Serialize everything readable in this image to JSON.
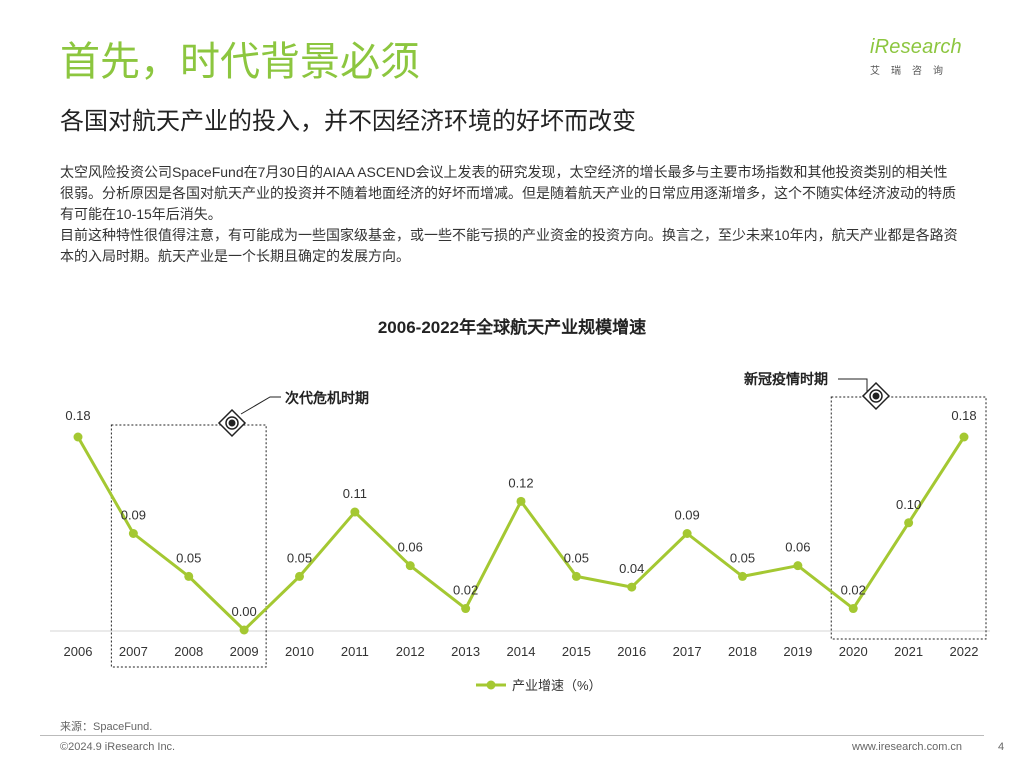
{
  "header": {
    "title": "首先，时代背景必须",
    "subtitle": "各国对航天产业的投入，并不因经济环境的好坏而改变"
  },
  "logo": {
    "text": "iResearch",
    "sub": "艾瑞咨询"
  },
  "body": {
    "paragraphs": [
      "太空风险投资公司SpaceFund在7月30日的AIAA ASCEND会议上发表的研究发现，太空经济的增长最多与主要市场指数和其他投资类别的相关性很弱。分析原因是各国对航天产业的投资并不随着地面经济的好坏而增减。但是随着航天产业的日常应用逐渐增多，这个不随实体经济波动的特质有可能在10-15年后消失。",
      "目前这种特性很值得注意，有可能成为一些国家级基金，或一些不能亏损的产业资金的投资方向。换言之，至少未来10年内，航天产业都是各路资本的入局时期。航天产业是一个长期且确定的发展方向。"
    ]
  },
  "chart_data": {
    "type": "line",
    "title": "2006-2022年全球航天产业规模增速",
    "x": [
      "2006",
      "2007",
      "2008",
      "2009",
      "2010",
      "2011",
      "2012",
      "2013",
      "2014",
      "2015",
      "2016",
      "2017",
      "2018",
      "2019",
      "2020",
      "2021",
      "2022"
    ],
    "series": [
      {
        "name": "产业增速（%）",
        "values": [
          0.18,
          0.09,
          0.05,
          0.0,
          0.05,
          0.11,
          0.06,
          0.02,
          0.12,
          0.05,
          0.04,
          0.09,
          0.05,
          0.06,
          0.02,
          0.1,
          0.18
        ],
        "labels": [
          "0.18",
          "0.09",
          "0.05",
          "0.00",
          "0.05",
          "0.11",
          "0.06",
          "0.02",
          "0.12",
          "0.05",
          "0.04",
          "0.09",
          "0.05",
          "0.06",
          "0.02",
          "0.10",
          "0.18"
        ],
        "color": "#a4c832"
      }
    ],
    "ylim": [
      0,
      0.18
    ],
    "grid": false,
    "legend": "bottom",
    "annotations": [
      {
        "text": "次代危机时期",
        "x_start": "2007",
        "x_end": "2009"
      },
      {
        "text": "新冠疫情时期",
        "x_start": "2020",
        "x_end": "2022"
      }
    ]
  },
  "footer": {
    "source": "来源：SpaceFund.",
    "copyright": "©2024.9 iResearch Inc.",
    "website": "www.iresearch.com.cn",
    "page": "4"
  }
}
